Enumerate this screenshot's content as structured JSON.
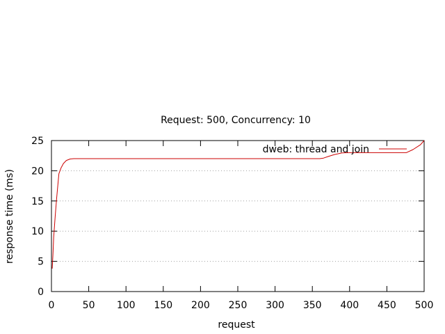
{
  "chart_data": {
    "type": "line",
    "title": "Request: 500, Concurrency: 10",
    "xlabel": "request",
    "ylabel": "response time (ms)",
    "xlim": [
      0,
      500
    ],
    "ylim": [
      0,
      25
    ],
    "x_ticks": [
      0,
      50,
      100,
      150,
      200,
      250,
      300,
      350,
      400,
      450,
      500
    ],
    "y_ticks": [
      0,
      5,
      10,
      15,
      20,
      25
    ],
    "grid": "horizontal dotted",
    "legend_position": "top-right",
    "series": [
      {
        "name": "dweb: thread and join",
        "color": "#cc0000",
        "points": [
          [
            1,
            3.8
          ],
          [
            2,
            6
          ],
          [
            3,
            9
          ],
          [
            5,
            12.5
          ],
          [
            7,
            15.5
          ],
          [
            10,
            19.5
          ],
          [
            13,
            20.5
          ],
          [
            16,
            21.2
          ],
          [
            20,
            21.7
          ],
          [
            25,
            21.95
          ],
          [
            30,
            22
          ],
          [
            100,
            22
          ],
          [
            200,
            22
          ],
          [
            300,
            22
          ],
          [
            360,
            22
          ],
          [
            365,
            22.1
          ],
          [
            372,
            22.4
          ],
          [
            380,
            22.7
          ],
          [
            390,
            22.95
          ],
          [
            400,
            23
          ],
          [
            450,
            23
          ],
          [
            476,
            23
          ],
          [
            485,
            23.5
          ],
          [
            495,
            24.3
          ],
          [
            500,
            25
          ]
        ]
      }
    ]
  }
}
